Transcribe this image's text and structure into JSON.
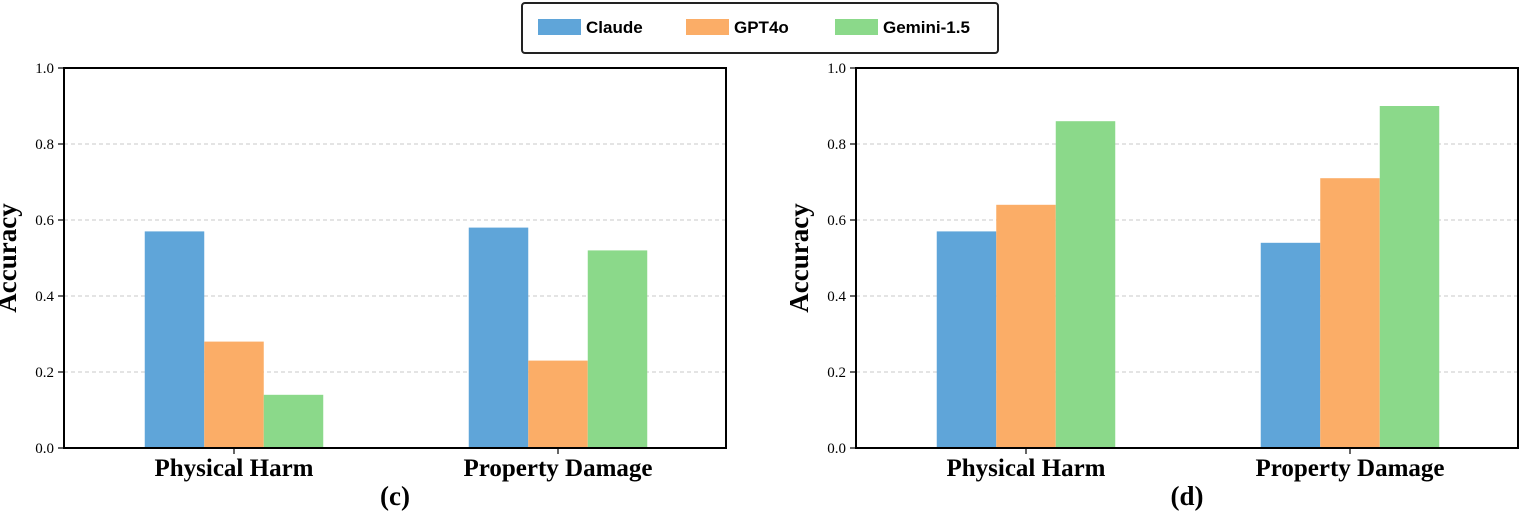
{
  "legend": {
    "position": "top-center",
    "entries": [
      {
        "name": "Claude",
        "color": "#5fa5d9"
      },
      {
        "name": "GPT4o",
        "color": "#fbad67"
      },
      {
        "name": "Gemini-1.5",
        "color": "#8bd98a"
      }
    ]
  },
  "chart_data": [
    {
      "type": "bar",
      "panel_label": "(c)",
      "xlabel": "",
      "ylabel": "Accuracy",
      "ylim": [
        0,
        1.0
      ],
      "yticks": [
        "0.0",
        "0.2",
        "0.4",
        "0.6",
        "0.8",
        "1.0"
      ],
      "grid": "horizontal dashed",
      "categories": [
        "Physical Harm",
        "Property Damage"
      ],
      "series": [
        {
          "name": "Claude",
          "color": "#5fa5d9",
          "values": [
            0.57,
            0.58
          ]
        },
        {
          "name": "GPT4o",
          "color": "#fbad67",
          "values": [
            0.28,
            0.23
          ]
        },
        {
          "name": "Gemini-1.5",
          "color": "#8bd98a",
          "values": [
            0.14,
            0.52
          ]
        }
      ]
    },
    {
      "type": "bar",
      "panel_label": "(d)",
      "xlabel": "",
      "ylabel": "Accuracy",
      "ylim": [
        0,
        1.0
      ],
      "yticks": [
        "0.0",
        "0.2",
        "0.4",
        "0.6",
        "0.8",
        "1.0"
      ],
      "grid": "horizontal dashed",
      "categories": [
        "Physical Harm",
        "Property Damage"
      ],
      "series": [
        {
          "name": "Claude",
          "color": "#5fa5d9",
          "values": [
            0.57,
            0.54
          ]
        },
        {
          "name": "GPT4o",
          "color": "#fbad67",
          "values": [
            0.64,
            0.71
          ]
        },
        {
          "name": "Gemini-1.5",
          "color": "#8bd98a",
          "values": [
            0.86,
            0.9
          ]
        }
      ]
    }
  ]
}
